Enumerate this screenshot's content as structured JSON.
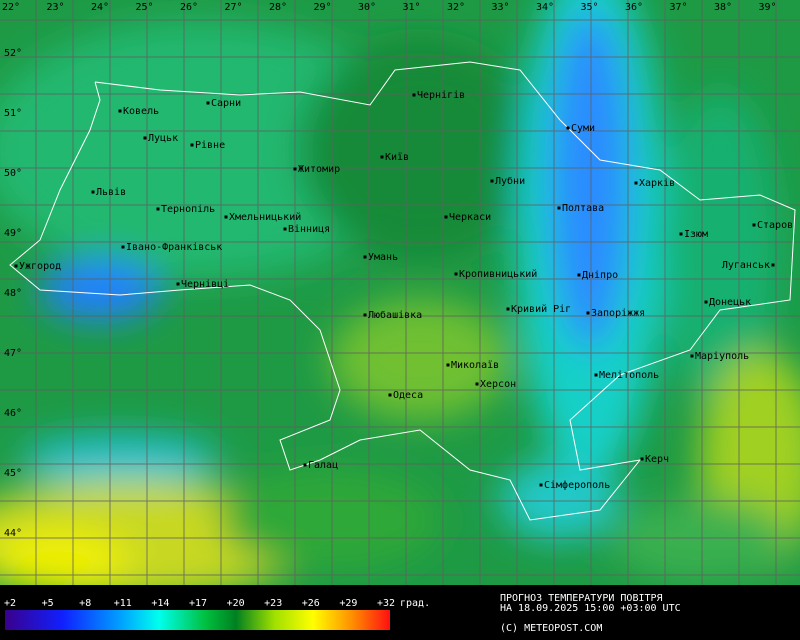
{
  "map": {
    "longitudes": [
      "22°",
      "23°",
      "24°",
      "25°",
      "26°",
      "27°",
      "28°",
      "29°",
      "30°",
      "31°",
      "32°",
      "33°",
      "34°",
      "35°",
      "36°",
      "37°",
      "38°",
      "39°"
    ],
    "latitudes": [
      "52°",
      "51°",
      "50°",
      "49°",
      "48°",
      "47°",
      "46°",
      "45°",
      "44°"
    ],
    "cities": [
      "Ковель",
      "Сарни",
      "Чернігів",
      "Луцьк",
      "Рівне",
      "Суми",
      "Житомир",
      "Київ",
      "Львів",
      "Лубни",
      "Харків",
      "Тернопіль",
      "Хмельницький",
      "Черкаси",
      "Полтава",
      "Вінниця",
      "Ізюм",
      "Старов",
      "Івано-Франківськ",
      "Ужгород",
      "Умань",
      "Кропивницький",
      "Дніпро",
      "Луганськ",
      "Чернівці",
      "Донецьк",
      "Кривий Ріг",
      "Запоріжжя",
      "Любашівка",
      "Маріуполь",
      "Миколаїв",
      "Мелітополь",
      "Херсон",
      "Одеса",
      "Керч",
      "Галац",
      "Сімферополь"
    ]
  },
  "legend": {
    "ticks": [
      "+2",
      "+5",
      "+8",
      "+11",
      "+14",
      "+17",
      "+20",
      "+23",
      "+26",
      "+29",
      "+32"
    ],
    "unit": "град."
  },
  "caption": {
    "title": "ПРОГНОЗ ТЕМПЕРАТУРИ ПОВІТРЯ",
    "date": "НА 18.09.2025 15:00 +03:00 UTC",
    "credit": "(C) METEOPOST.COM"
  }
}
